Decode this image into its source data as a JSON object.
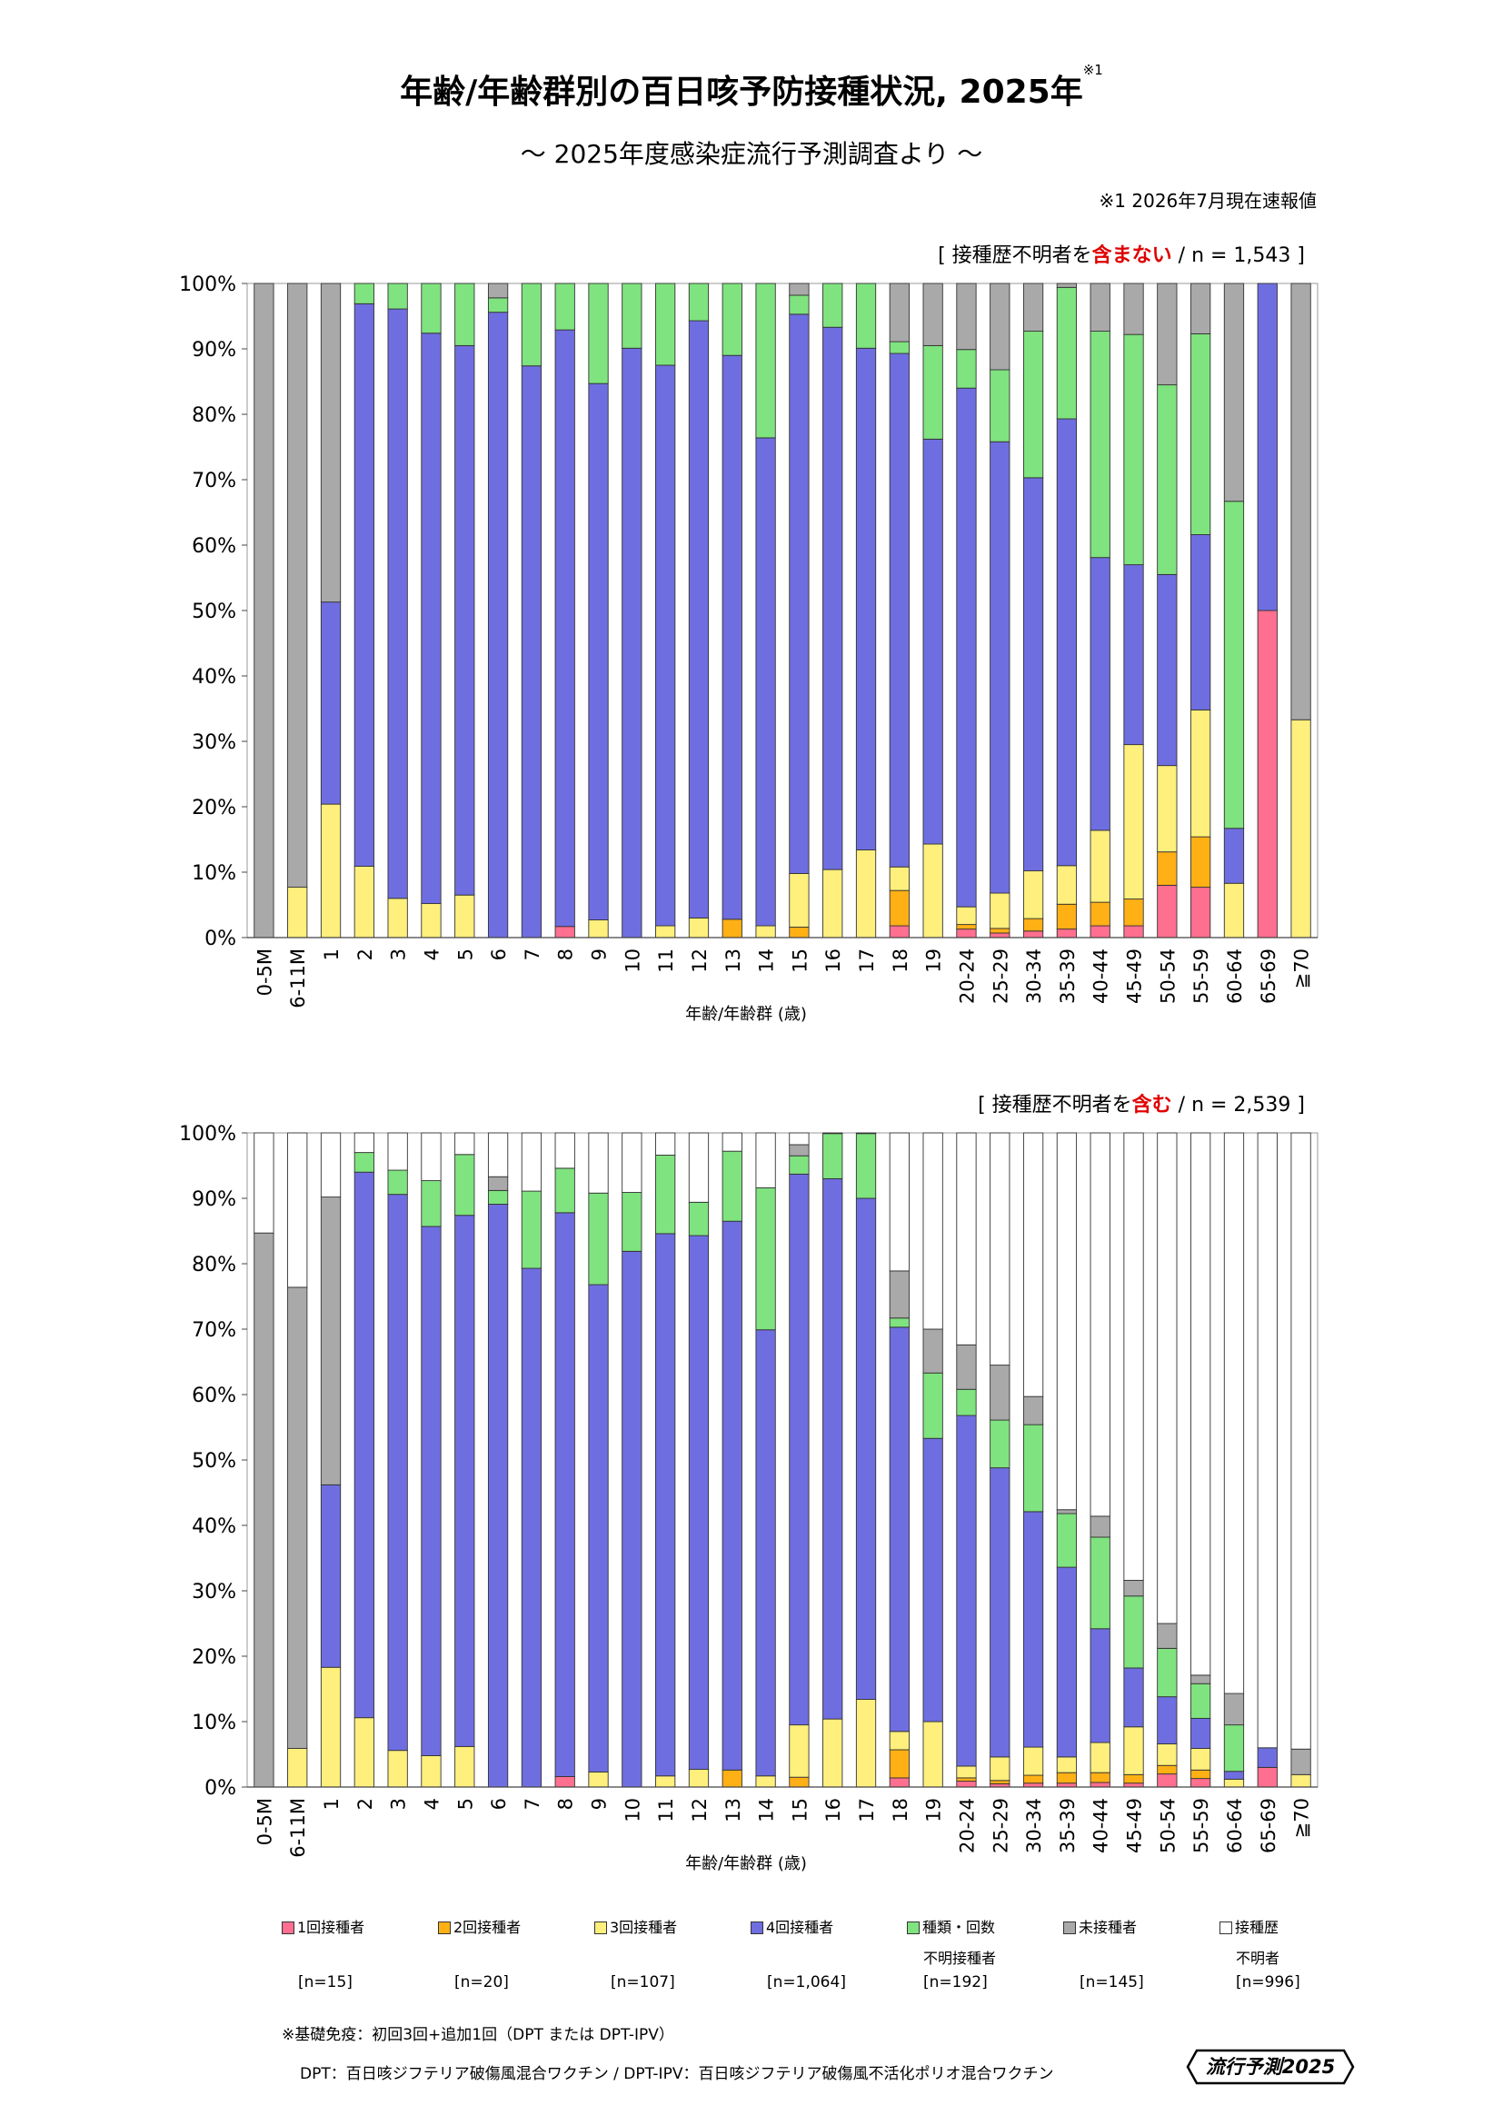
{
  "title": "年齢/年齢群別の百日咳予防接種状況, 2025年",
  "title_note_mark": "※1",
  "subtitle": "～ 2025年度感染症流行予測調査より ～",
  "note1": "※1  2026年7月現在速報値",
  "chart1_sample": {
    "prefix": "[ 接種歴不明者を",
    "highlight": "含まない",
    "suffix": " / n = 1,543 ]"
  },
  "chart2_sample": {
    "prefix": "[ 接種歴不明者を",
    "highlight": "含む",
    "suffix": " / n = 2,539 ]"
  },
  "colors": {
    "dose1": "#ff6f8f",
    "dose2": "#ffb015",
    "dose3": "#ffef7c",
    "dose4": "#6f6ee0",
    "unknown_type": "#7fe37f",
    "unvaccinated": "#a9a9a9",
    "unknown_history": "#ffffff",
    "highlight": "#e00000"
  },
  "legend": [
    {
      "key": "dose1",
      "label": "1回接種者",
      "n": "[n=15]"
    },
    {
      "key": "dose2",
      "label": "2回接種者",
      "n": "[n=20]"
    },
    {
      "key": "dose3",
      "label": "3回接種者",
      "n": "[n=107]"
    },
    {
      "key": "dose4",
      "label": "4回接種者",
      "n": "[n=1,064]"
    },
    {
      "key": "unknown_type",
      "label": "種類・回数",
      "label2": "不明接種者",
      "n": "[n=192]"
    },
    {
      "key": "unvaccinated",
      "label": "未接種者",
      "n": "[n=145]"
    },
    {
      "key": "unknown_history",
      "label": "接種歴",
      "label2": "不明者",
      "n": "[n=996]"
    }
  ],
  "footnote1": "※基礎免疫：初回3回+追加1回（DPT または DPT-IPV）",
  "footnote2": "DPT：百日咳ジフテリア破傷風混合ワクチン / DPT-IPV：百日咳ジフテリア破傷風不活化ポリオ混合ワクチン",
  "logo": "流行予測2025",
  "chart_data": [
    {
      "type": "bar",
      "stacked": true,
      "percent": true,
      "xlabel": "年齢/年齢群 (歳)",
      "ylim": [
        0,
        100
      ],
      "yticks": [
        "0%",
        "10%",
        "20%",
        "30%",
        "40%",
        "50%",
        "60%",
        "70%",
        "80%",
        "90%",
        "100%"
      ],
      "categories": [
        "0-5M",
        "6-11M",
        "1",
        "2",
        "3",
        "4",
        "5",
        "6",
        "7",
        "8",
        "9",
        "10",
        "11",
        "12",
        "13",
        "14",
        "15",
        "16",
        "17",
        "18",
        "19",
        "20-24",
        "25-29",
        "30-34",
        "35-39",
        "40-44",
        "45-49",
        "50-54",
        "55-59",
        "60-64",
        "65-69",
        "≧70"
      ],
      "series": [
        {
          "name": "1回接種者",
          "key": "dose1",
          "values": [
            0,
            0,
            0,
            0,
            0,
            0,
            0,
            0,
            0,
            1.7,
            0,
            0,
            0,
            0,
            0,
            0,
            0,
            0,
            0,
            1.8,
            0,
            1.3,
            0.7,
            1.0,
            1.3,
            1.8,
            1.8,
            8.0,
            7.7,
            0,
            50,
            0
          ]
        },
        {
          "name": "2回接種者",
          "key": "dose2",
          "values": [
            0,
            0,
            0,
            0,
            0,
            0,
            0,
            0,
            0,
            0,
            0,
            0,
            0,
            0,
            2.8,
            0,
            1.6,
            0,
            0,
            5.4,
            0,
            0.7,
            0.7,
            1.9,
            3.8,
            3.6,
            4.1,
            5.1,
            7.7,
            0,
            0,
            0
          ]
        },
        {
          "name": "3回接種者",
          "key": "dose3",
          "values": [
            0,
            7.7,
            20.4,
            10.9,
            6.0,
            5.2,
            6.5,
            0,
            0,
            0,
            2.7,
            0,
            1.8,
            3.0,
            0,
            1.8,
            8.2,
            10.4,
            13.4,
            3.6,
            14.3,
            2.7,
            5.4,
            7.3,
            5.9,
            11.0,
            23.6,
            13.2,
            19.4,
            8.3,
            0,
            33.3
          ]
        },
        {
          "name": "4回接種者",
          "key": "dose4",
          "values": [
            0,
            0,
            30.9,
            86.0,
            90.1,
            87.2,
            84.0,
            95.6,
            87.4,
            91.2,
            82.0,
            90.1,
            85.7,
            91.3,
            86.2,
            74.6,
            85.5,
            82.9,
            76.7,
            78.5,
            61.9,
            79.3,
            69.0,
            60.1,
            68.3,
            41.7,
            27.5,
            29.2,
            26.8,
            8.4,
            50,
            0
          ]
        },
        {
          "name": "種類・回数不明接種者",
          "key": "unknown_type",
          "values": [
            0,
            0,
            0,
            3.1,
            3.9,
            7.6,
            9.5,
            2.2,
            12.6,
            7.1,
            15.3,
            9.9,
            12.5,
            5.7,
            11.0,
            23.6,
            2.9,
            6.7,
            9.9,
            1.8,
            14.3,
            5.9,
            11.0,
            22.4,
            20.1,
            34.6,
            35.2,
            29.0,
            30.7,
            50.0,
            0,
            0
          ]
        },
        {
          "name": "未接種者",
          "key": "unvaccinated",
          "values": [
            100,
            92.3,
            48.7,
            0,
            0,
            0,
            0,
            2.2,
            0,
            0,
            0,
            0,
            0,
            0,
            0,
            0,
            1.8,
            0,
            0,
            8.9,
            9.5,
            10.1,
            13.2,
            7.3,
            0.6,
            7.3,
            7.8,
            15.5,
            7.7,
            33.3,
            0,
            66.7
          ]
        }
      ]
    },
    {
      "type": "bar",
      "stacked": true,
      "percent": true,
      "xlabel": "年齢/年齢群 (歳)",
      "ylim": [
        0,
        100
      ],
      "yticks": [
        "0%",
        "10%",
        "20%",
        "30%",
        "40%",
        "50%",
        "60%",
        "70%",
        "80%",
        "90%",
        "100%"
      ],
      "categories": [
        "0-5M",
        "6-11M",
        "1",
        "2",
        "3",
        "4",
        "5",
        "6",
        "7",
        "8",
        "9",
        "10",
        "11",
        "12",
        "13",
        "14",
        "15",
        "16",
        "17",
        "18",
        "19",
        "20-24",
        "25-29",
        "30-34",
        "35-39",
        "40-44",
        "45-49",
        "50-54",
        "55-59",
        "60-64",
        "65-69",
        "≧70"
      ],
      "series": [
        {
          "name": "1回接種者",
          "key": "dose1",
          "values": [
            0,
            0,
            0,
            0,
            0,
            0,
            0,
            0,
            0,
            1.6,
            0,
            0,
            0,
            0,
            0,
            0,
            0,
            0,
            0,
            1.4,
            0,
            0.9,
            0.5,
            0.6,
            0.6,
            0.7,
            0.6,
            2.0,
            1.3,
            0,
            3.0,
            0
          ]
        },
        {
          "name": "2回接種者",
          "key": "dose2",
          "values": [
            0,
            0,
            0,
            0,
            0,
            0,
            0,
            0,
            0,
            0,
            0,
            0,
            0,
            0,
            2.6,
            0,
            1.5,
            0,
            0,
            4.3,
            0,
            0.5,
            0.5,
            1.2,
            1.6,
            1.5,
            1.3,
            1.3,
            1.3,
            0,
            0,
            0
          ]
        },
        {
          "name": "3回接種者",
          "key": "dose3",
          "values": [
            0,
            5.9,
            18.3,
            10.6,
            5.6,
            4.8,
            6.2,
            0,
            0,
            0,
            2.3,
            0,
            1.7,
            2.7,
            0,
            1.7,
            8.0,
            10.4,
            13.4,
            2.8,
            10.0,
            1.8,
            3.6,
            4.3,
            2.4,
            4.6,
            7.3,
            3.3,
            3.3,
            1.2,
            0,
            1.9
          ]
        },
        {
          "name": "4回接種者",
          "key": "dose4",
          "values": [
            0,
            0,
            27.9,
            83.4,
            85.0,
            80.9,
            81.2,
            89.1,
            79.3,
            86.2,
            74.5,
            81.9,
            82.9,
            81.6,
            83.9,
            68.2,
            84.2,
            82.6,
            76.6,
            61.8,
            43.3,
            53.6,
            44.2,
            36.0,
            29.0,
            17.4,
            9.0,
            7.2,
            4.6,
            1.2,
            3.0,
            0
          ]
        },
        {
          "name": "種類・回数不明接種者",
          "key": "unknown_type",
          "values": [
            0,
            0,
            0,
            3.0,
            3.7,
            7.0,
            9.3,
            2.1,
            11.8,
            6.8,
            14.0,
            9.0,
            12.0,
            5.1,
            10.7,
            21.7,
            2.8,
            6.9,
            9.9,
            1.4,
            10.0,
            4.0,
            7.3,
            13.3,
            8.2,
            14.0,
            11.0,
            7.4,
            5.3,
            7.1,
            0,
            0
          ]
        },
        {
          "name": "未接種者",
          "key": "unvaccinated",
          "values": [
            84.7,
            70.5,
            44.0,
            0,
            0,
            0,
            0,
            2.1,
            0,
            0,
            0,
            0,
            0,
            0,
            0,
            0,
            1.7,
            0,
            0,
            7.2,
            6.7,
            6.8,
            8.4,
            4.3,
            0.6,
            3.2,
            2.4,
            3.8,
            1.3,
            4.8,
            0,
            3.9
          ]
        },
        {
          "name": "接種歴不明者",
          "key": "unknown_history",
          "values": [
            15.3,
            23.6,
            9.8,
            3.0,
            5.7,
            7.3,
            3.3,
            6.7,
            8.9,
            5.4,
            9.2,
            9.1,
            3.4,
            10.6,
            2.8,
            8.4,
            1.8,
            0.1,
            0.1,
            21.1,
            30.0,
            32.4,
            35.5,
            40.3,
            57.6,
            58.6,
            68.4,
            75.0,
            82.9,
            85.7,
            94.0,
            94.2
          ]
        }
      ]
    }
  ]
}
